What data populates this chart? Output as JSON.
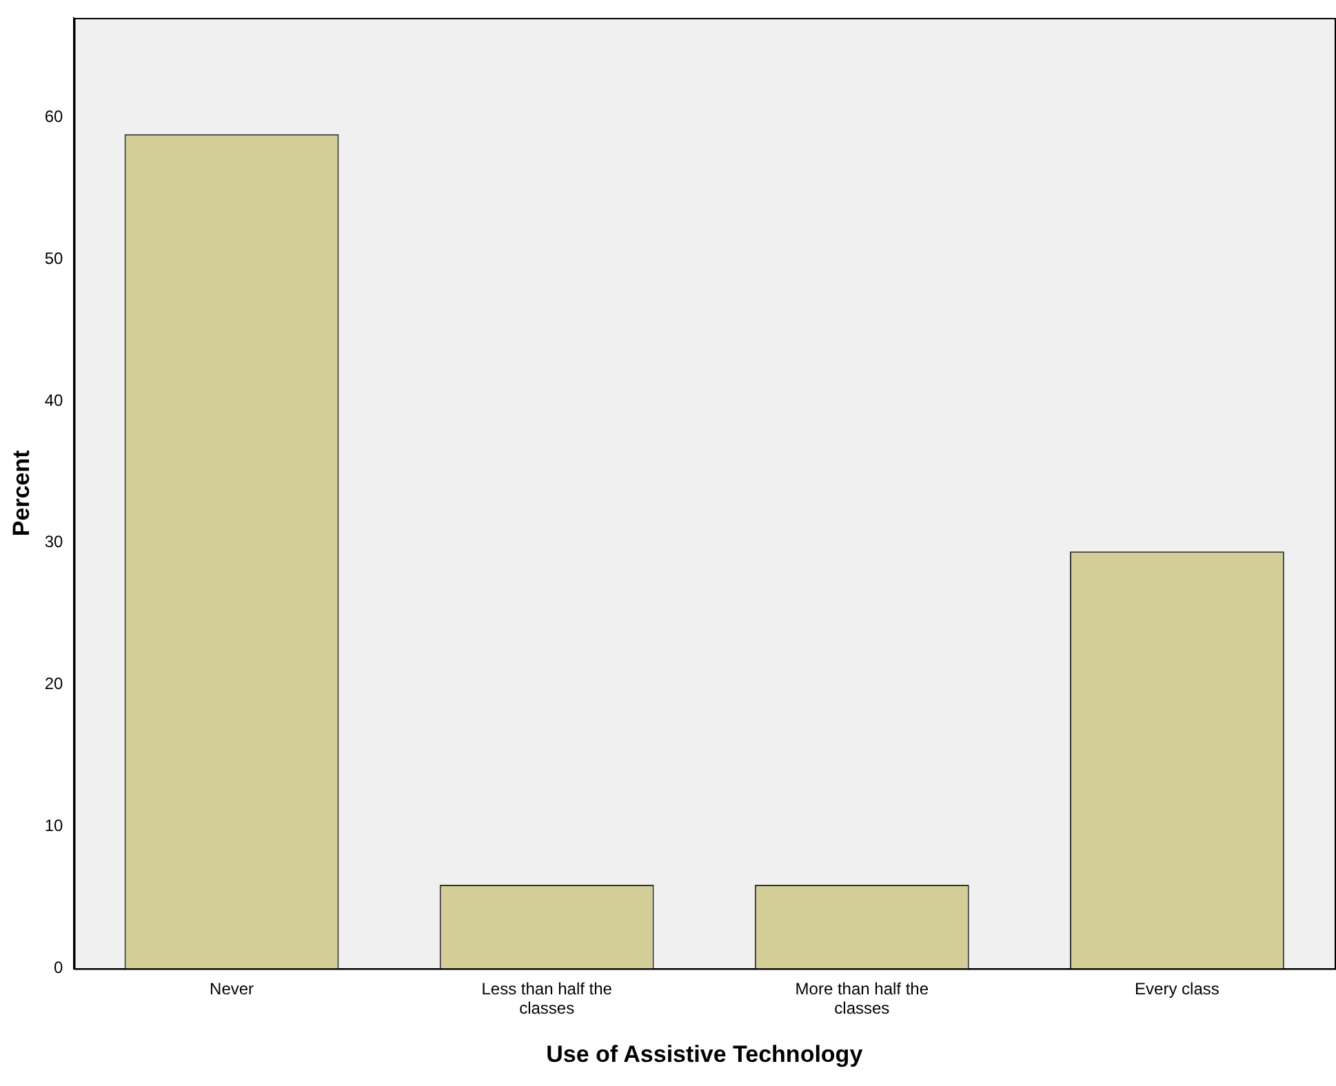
{
  "chart_data": {
    "type": "bar",
    "xlabel": "Use of Assistive Technology",
    "ylabel": "Percent",
    "categories": [
      "Never",
      "Less than half the classes",
      "More than half the classes",
      "Every class"
    ],
    "values": [
      58.8,
      5.9,
      5.9,
      29.4
    ],
    "color": "#d3ce97",
    "ylim": [
      0,
      67
    ],
    "yticks": [
      0,
      10,
      20,
      30,
      40,
      50,
      60
    ],
    "grid": false,
    "legend": false
  }
}
